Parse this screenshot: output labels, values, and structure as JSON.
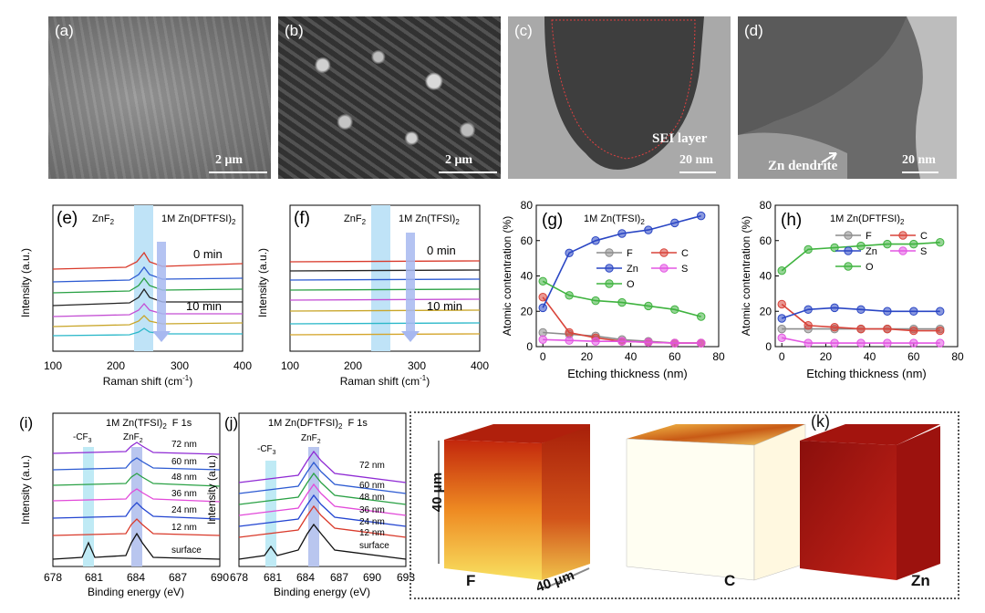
{
  "micrographs": {
    "a": {
      "label": "(a)",
      "scale": "2 μm"
    },
    "b": {
      "label": "(b)",
      "scale": "2 μm"
    },
    "c": {
      "label": "(c)",
      "scale": "20 nm",
      "annotation": "SEI layer"
    },
    "d": {
      "label": "(d)",
      "scale": "20 nm",
      "annotation": "Zn dendrite"
    }
  },
  "raman_e": {
    "label": "(e)",
    "electrolyte": "1M Zn(DFTFSI)",
    "electrolyte_sub": "2",
    "band": "ZnF",
    "band_sub": "2",
    "time_start": "0 min",
    "time_end": "10 min",
    "ylabel": "Intensity (a.u.)",
    "xlabel": "Raman shift (cm",
    "xlabel_sup": "-1",
    "xlabel_end": ")",
    "ticks": [
      "100",
      "200",
      "300",
      "400"
    ]
  },
  "raman_f": {
    "label": "(f)",
    "electrolyte": "1M Zn(TFSI)",
    "electrolyte_sub": "2",
    "band": "ZnF",
    "band_sub": "2",
    "time_start": "0 min",
    "time_end": "10 min",
    "ylabel": "Intensity (a.u.)",
    "xlabel": "Raman shift (cm",
    "xlabel_sup": "-1",
    "xlabel_end": ")",
    "ticks": [
      "100",
      "200",
      "300",
      "400"
    ]
  },
  "chart_data": [
    {
      "type": "line",
      "panel": "(g)",
      "title": "1M Zn(TFSI)2",
      "xlabel": "Etching thickness (nm)",
      "ylabel": "Atomic contentration (%)",
      "xlim": [
        -3,
        80
      ],
      "ylim": [
        0,
        80
      ],
      "xticks": [
        0,
        20,
        40,
        60,
        80
      ],
      "yticks": [
        0,
        20,
        40,
        60,
        80
      ],
      "x": [
        0,
        12,
        24,
        36,
        48,
        60,
        72
      ],
      "series": [
        {
          "name": "F",
          "color": "#8c8c8c",
          "values": [
            8,
            7,
            6,
            4,
            3,
            2,
            2
          ]
        },
        {
          "name": "C",
          "color": "#d9443a",
          "values": [
            28,
            8,
            5,
            3,
            2.5,
            2,
            2
          ]
        },
        {
          "name": "Zn",
          "color": "#2a46c4",
          "values": [
            22,
            53,
            60,
            64,
            66,
            70,
            74
          ]
        },
        {
          "name": "S",
          "color": "#e356e3",
          "values": [
            4,
            3.5,
            3,
            3,
            2.5,
            2,
            2
          ]
        },
        {
          "name": "O",
          "color": "#3fb33f",
          "values": [
            37,
            29,
            26,
            25,
            23,
            21,
            17
          ]
        }
      ]
    },
    {
      "type": "line",
      "panel": "(h)",
      "title": "1M Zn(DFTFSI)2",
      "xlabel": "Etching thickness (nm)",
      "ylabel": "Atomic contentration (%)",
      "xlim": [
        -3,
        80
      ],
      "ylim": [
        0,
        80
      ],
      "xticks": [
        0,
        20,
        40,
        60,
        80
      ],
      "yticks": [
        0,
        20,
        40,
        60,
        80
      ],
      "x": [
        0,
        12,
        24,
        36,
        48,
        60,
        72
      ],
      "series": [
        {
          "name": "F",
          "color": "#8c8c8c",
          "values": [
            10,
            10,
            10,
            10,
            10,
            10,
            10
          ]
        },
        {
          "name": "C",
          "color": "#d9443a",
          "values": [
            24,
            12,
            11,
            10,
            10,
            9,
            9
          ]
        },
        {
          "name": "Zn",
          "color": "#2a46c4",
          "values": [
            16,
            21,
            22,
            21,
            20,
            20,
            20
          ]
        },
        {
          "name": "S",
          "color": "#e356e3",
          "values": [
            5,
            2,
            2,
            2,
            2,
            2,
            2
          ]
        },
        {
          "name": "O",
          "color": "#3fb33f",
          "values": [
            43,
            55,
            56,
            57,
            58,
            58,
            59
          ]
        }
      ]
    }
  ],
  "xps_i": {
    "label": "(i)",
    "title": "1M Zn(TFSI)",
    "title_sub": "2",
    "core": "F 1s",
    "ylabel": "Intensity (a.u.)",
    "xlabel": "Binding energy (eV)",
    "ticks": [
      "678",
      "681",
      "684",
      "687",
      "690"
    ],
    "peak_cf3": "-CF",
    "peak_cf3_sub": "3",
    "peak_znf2": "ZnF",
    "peak_znf2_sub": "2",
    "depths": [
      "72 nm",
      "60 nm",
      "48 nm",
      "36 nm",
      "24 nm",
      "12 nm",
      "surface"
    ]
  },
  "xps_j": {
    "label": "(j)",
    "title": "1M Zn(DFTFSI)",
    "title_sub": "2",
    "core": "F 1s",
    "ylabel": "Intensity (a.u.)",
    "xlabel": "Binding energy (eV)",
    "ticks": [
      "678",
      "681",
      "684",
      "687",
      "690",
      "693"
    ],
    "peak_cf3": "-CF",
    "peak_cf3_sub": "3",
    "peak_znf2": "ZnF",
    "peak_znf2_sub": "2",
    "depths": [
      "72 nm",
      "60 nm",
      "48 nm",
      "36 nm",
      "24 nm",
      "12 nm",
      "surface"
    ]
  },
  "tof_k": {
    "label": "(k)",
    "dim_vertical": "40 μm",
    "dim_horizontal": "40 μm",
    "elements": [
      "F",
      "C",
      "Zn"
    ]
  }
}
